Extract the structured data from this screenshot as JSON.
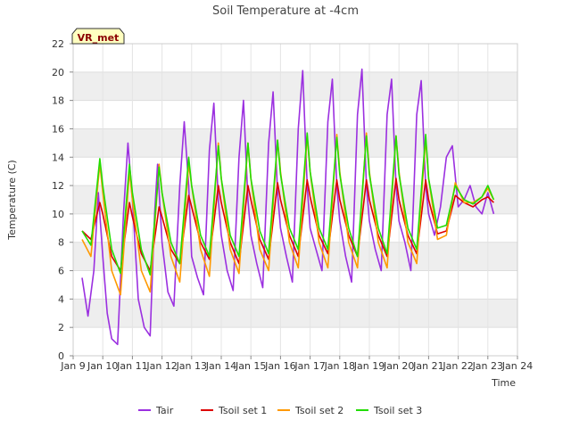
{
  "chart_data": {
    "type": "line",
    "title": "Soil Temperature at -4cm",
    "xlabel": "Time",
    "ylabel": "Temperature (C)",
    "badge": "VR_met",
    "xlim": [
      9,
      24
    ],
    "ylim": [
      0,
      22
    ],
    "x_ticks": [
      {
        "v": 9,
        "label": "Jan 9"
      },
      {
        "v": 10,
        "label": "Jan 10"
      },
      {
        "v": 11,
        "label": "Jan 11"
      },
      {
        "v": 12,
        "label": "Jan 12"
      },
      {
        "v": 13,
        "label": "Jan 13"
      },
      {
        "v": 14,
        "label": "Jan 14"
      },
      {
        "v": 15,
        "label": "Jan 15"
      },
      {
        "v": 16,
        "label": "Jan 16"
      },
      {
        "v": 17,
        "label": "Jan 17"
      },
      {
        "v": 18,
        "label": "Jan 18"
      },
      {
        "v": 19,
        "label": "Jan 19"
      },
      {
        "v": 20,
        "label": "Jan 20"
      },
      {
        "v": 21,
        "label": "Jan 21"
      },
      {
        "v": 22,
        "label": "Jan 22"
      },
      {
        "v": 23,
        "label": "Jan 23"
      },
      {
        "v": 24,
        "label": "Jan 24"
      }
    ],
    "y_ticks": [
      0,
      2,
      4,
      6,
      8,
      10,
      12,
      14,
      16,
      18,
      20,
      22
    ],
    "grid": true,
    "legend_position": "bottom",
    "series": [
      {
        "name": "Tair",
        "color": "#9b30e0",
        "x": [
          9.3,
          9.5,
          9.7,
          9.85,
          10.0,
          10.15,
          10.3,
          10.5,
          10.7,
          10.85,
          11.0,
          11.2,
          11.4,
          11.6,
          11.75,
          11.85,
          12.0,
          12.2,
          12.4,
          12.6,
          12.75,
          12.9,
          13.0,
          13.2,
          13.4,
          13.6,
          13.75,
          13.9,
          14.0,
          14.2,
          14.4,
          14.6,
          14.75,
          14.9,
          15.0,
          15.2,
          15.4,
          15.6,
          15.75,
          15.9,
          16.0,
          16.2,
          16.4,
          16.6,
          16.75,
          16.9,
          17.0,
          17.2,
          17.4,
          17.6,
          17.75,
          17.9,
          18.0,
          18.2,
          18.4,
          18.6,
          18.75,
          18.9,
          19.0,
          19.2,
          19.4,
          19.6,
          19.75,
          19.9,
          20.0,
          20.2,
          20.4,
          20.6,
          20.75,
          20.9,
          21.0,
          21.2,
          21.4,
          21.6,
          21.8,
          22.0,
          22.2,
          22.4,
          22.6,
          22.8,
          23.0,
          23.2
        ],
        "y": [
          5.5,
          2.8,
          6.0,
          11.5,
          7.0,
          3.0,
          1.2,
          0.8,
          10.0,
          15.0,
          11.0,
          4.0,
          2.0,
          1.4,
          10.0,
          13.5,
          8.0,
          4.5,
          3.5,
          12.0,
          16.5,
          12.0,
          7.0,
          5.5,
          4.3,
          14.5,
          17.8,
          11.0,
          8.5,
          6.0,
          4.6,
          14.0,
          18.0,
          11.0,
          8.5,
          6.5,
          4.8,
          15.0,
          18.6,
          11.5,
          9.0,
          7.0,
          5.2,
          16.0,
          20.1,
          12.0,
          9.0,
          7.5,
          6.0,
          16.5,
          19.5,
          12.0,
          9.5,
          7.0,
          5.2,
          17.0,
          20.2,
          12.0,
          9.5,
          7.5,
          6.0,
          17.0,
          19.5,
          12.0,
          9.5,
          8.0,
          6.0,
          17.0,
          19.4,
          12.0,
          10.0,
          8.5,
          10.5,
          14.0,
          14.8,
          10.5,
          11.0,
          12.0,
          10.5,
          10.0,
          11.5,
          10.0
        ]
      },
      {
        "name": "Tsoil set 1",
        "color": "#dd0000",
        "x": [
          9.3,
          9.6,
          9.9,
          10.0,
          10.3,
          10.6,
          10.9,
          11.0,
          11.3,
          11.6,
          11.9,
          12.0,
          12.3,
          12.6,
          12.9,
          13.0,
          13.3,
          13.6,
          13.9,
          14.0,
          14.3,
          14.6,
          14.9,
          15.0,
          15.3,
          15.6,
          15.9,
          16.0,
          16.3,
          16.6,
          16.9,
          17.0,
          17.3,
          17.6,
          17.9,
          18.0,
          18.3,
          18.6,
          18.9,
          19.0,
          19.3,
          19.6,
          19.9,
          20.0,
          20.3,
          20.6,
          20.9,
          21.0,
          21.3,
          21.6,
          21.9,
          22.2,
          22.5,
          22.8,
          23.0,
          23.2
        ],
        "y": [
          8.8,
          8.2,
          10.8,
          10.0,
          7.0,
          6.0,
          10.8,
          9.8,
          7.2,
          6.0,
          10.5,
          9.8,
          7.5,
          6.5,
          11.3,
          10.5,
          8.0,
          6.8,
          12.0,
          10.8,
          8.0,
          6.5,
          12.0,
          11.0,
          8.2,
          6.8,
          12.2,
          11.0,
          8.5,
          7.0,
          12.4,
          11.2,
          8.5,
          7.2,
          12.4,
          11.0,
          8.5,
          7.0,
          12.4,
          11.0,
          8.5,
          7.0,
          12.5,
          11.0,
          8.5,
          7.2,
          12.4,
          11.0,
          8.6,
          8.8,
          11.3,
          10.8,
          10.5,
          11.0,
          11.2,
          10.8
        ]
      },
      {
        "name": "Tsoil set 2",
        "color": "#ff9900",
        "x": [
          9.3,
          9.6,
          9.9,
          10.0,
          10.3,
          10.6,
          10.9,
          11.0,
          11.3,
          11.6,
          11.9,
          12.0,
          12.3,
          12.6,
          12.9,
          13.0,
          13.3,
          13.6,
          13.9,
          14.0,
          14.3,
          14.6,
          14.9,
          15.0,
          15.3,
          15.6,
          15.9,
          16.0,
          16.3,
          16.6,
          16.9,
          17.0,
          17.3,
          17.6,
          17.9,
          18.0,
          18.3,
          18.6,
          18.9,
          19.0,
          19.3,
          19.6,
          19.9,
          20.0,
          20.3,
          20.6,
          20.9,
          21.0,
          21.3,
          21.6,
          21.9,
          22.2,
          22.5,
          22.8,
          23.0,
          23.2
        ],
        "y": [
          8.2,
          7.0,
          13.5,
          11.5,
          6.0,
          4.3,
          13.0,
          11.0,
          6.0,
          4.5,
          13.5,
          11.5,
          7.0,
          5.2,
          13.5,
          12.0,
          7.5,
          5.6,
          15.0,
          12.5,
          7.5,
          5.8,
          15.0,
          12.5,
          7.5,
          6.0,
          15.2,
          13.0,
          8.0,
          6.2,
          15.5,
          13.0,
          8.0,
          6.2,
          15.6,
          13.0,
          8.0,
          6.2,
          15.7,
          13.0,
          8.0,
          6.2,
          15.5,
          13.0,
          8.0,
          6.5,
          15.3,
          12.5,
          8.2,
          8.5,
          12.2,
          10.8,
          10.8,
          11.2,
          11.8,
          11.0
        ]
      },
      {
        "name": "Tsoil set 3",
        "color": "#22dd00",
        "x": [
          9.3,
          9.6,
          9.9,
          10.0,
          10.3,
          10.6,
          10.9,
          11.0,
          11.3,
          11.6,
          11.9,
          12.0,
          12.3,
          12.6,
          12.9,
          13.0,
          13.3,
          13.6,
          13.9,
          14.0,
          14.3,
          14.6,
          14.9,
          15.0,
          15.3,
          15.6,
          15.9,
          16.0,
          16.3,
          16.6,
          16.9,
          17.0,
          17.3,
          17.6,
          17.9,
          18.0,
          18.3,
          18.6,
          18.9,
          19.0,
          19.3,
          19.6,
          19.9,
          20.0,
          20.3,
          20.6,
          20.9,
          21.0,
          21.3,
          21.6,
          21.9,
          22.2,
          22.5,
          22.8,
          23.0,
          23.2
        ],
        "y": [
          8.8,
          7.8,
          13.9,
          12.0,
          7.5,
          5.8,
          13.5,
          11.5,
          7.5,
          5.7,
          13.3,
          11.5,
          8.0,
          6.5,
          14.0,
          12.0,
          8.5,
          7.0,
          14.8,
          12.5,
          8.5,
          7.0,
          15.0,
          12.5,
          8.8,
          7.2,
          15.2,
          12.8,
          9.0,
          7.5,
          15.7,
          13.0,
          9.0,
          7.5,
          15.4,
          12.8,
          9.0,
          7.0,
          15.5,
          12.8,
          9.0,
          7.2,
          15.5,
          12.8,
          9.0,
          7.5,
          15.6,
          12.5,
          9.0,
          9.2,
          12.0,
          11.0,
          10.7,
          11.2,
          12.0,
          11.0
        ]
      }
    ]
  }
}
